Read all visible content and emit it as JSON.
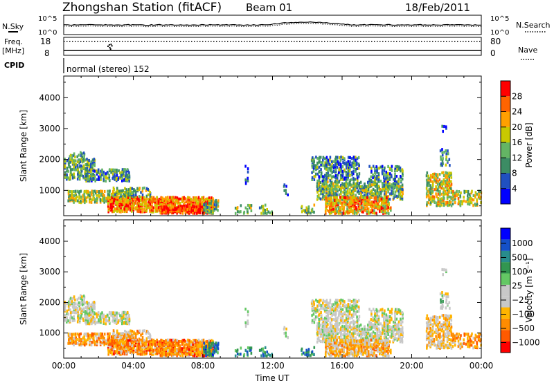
{
  "header": {
    "station": "Zhongshan Station (fitACF)",
    "beam": "Beam 01",
    "date": "18/Feb/2011"
  },
  "params": {
    "nsky_label": "N.Sky",
    "nsky_ticks": [
      "10^5",
      "10^0"
    ],
    "nsearch_label": "N.Search",
    "nsearch_ticks": [
      "10^5",
      "10^0"
    ],
    "freq_label": "Freq.",
    "freq_unit": "[MHz]",
    "freq_ticks": [
      "18",
      "8"
    ],
    "nave_label": "Nave",
    "nave_ticks": [
      "80",
      "0"
    ],
    "cpid_label": "CPID",
    "cpid_text": "normal (stereo) 152"
  },
  "colors": {
    "power": [
      "#0000ff",
      "#2050c0",
      "#3c8c64",
      "#64b464",
      "#c8c800",
      "#ffa000",
      "#ff6400",
      "#ff0000"
    ],
    "velocity": [
      "#ff0000",
      "#ff5a00",
      "#ff8c00",
      "#ffb400",
      "#c8c8c8",
      "#c8c8c8",
      "#64c864",
      "#329650",
      "#288c8c",
      "#1450c8",
      "#0000ff"
    ]
  },
  "chart_data": [
    {
      "type": "heatmap",
      "name": "power",
      "ylabel": "Slant Range [km]",
      "xlabel": "",
      "x_ticks": [
        "00:00",
        "04:00",
        "08:00",
        "12:00",
        "16:00",
        "20:00",
        "00:00"
      ],
      "y_ticks": [
        "1000",
        "2000",
        "3000",
        "4000"
      ],
      "xlim_hours": [
        0,
        24
      ],
      "ylim_km": [
        180,
        4700
      ],
      "colorbar_label": "Power [dB]",
      "colorbar_ticks": [
        "4",
        "8",
        "12",
        "16",
        "20",
        "24",
        "28"
      ],
      "colorbar_range": [
        0,
        32
      ],
      "grid": false
    },
    {
      "type": "heatmap",
      "name": "velocity",
      "ylabel": "Slant Range [km]",
      "xlabel": "Time UT",
      "x_ticks": [
        "00:00",
        "04:00",
        "08:00",
        "12:00",
        "16:00",
        "20:00",
        "00:00"
      ],
      "y_ticks": [
        "1000",
        "2000",
        "3000",
        "4000"
      ],
      "xlim_hours": [
        0,
        24
      ],
      "ylim_km": [
        180,
        4700
      ],
      "colorbar_label": "Velocity [m s⁻¹]",
      "colorbar_ticks": [
        "1000",
        "500",
        "100",
        "25",
        "−25",
        "−100",
        "−500",
        "−1000"
      ],
      "grid": false
    }
  ]
}
